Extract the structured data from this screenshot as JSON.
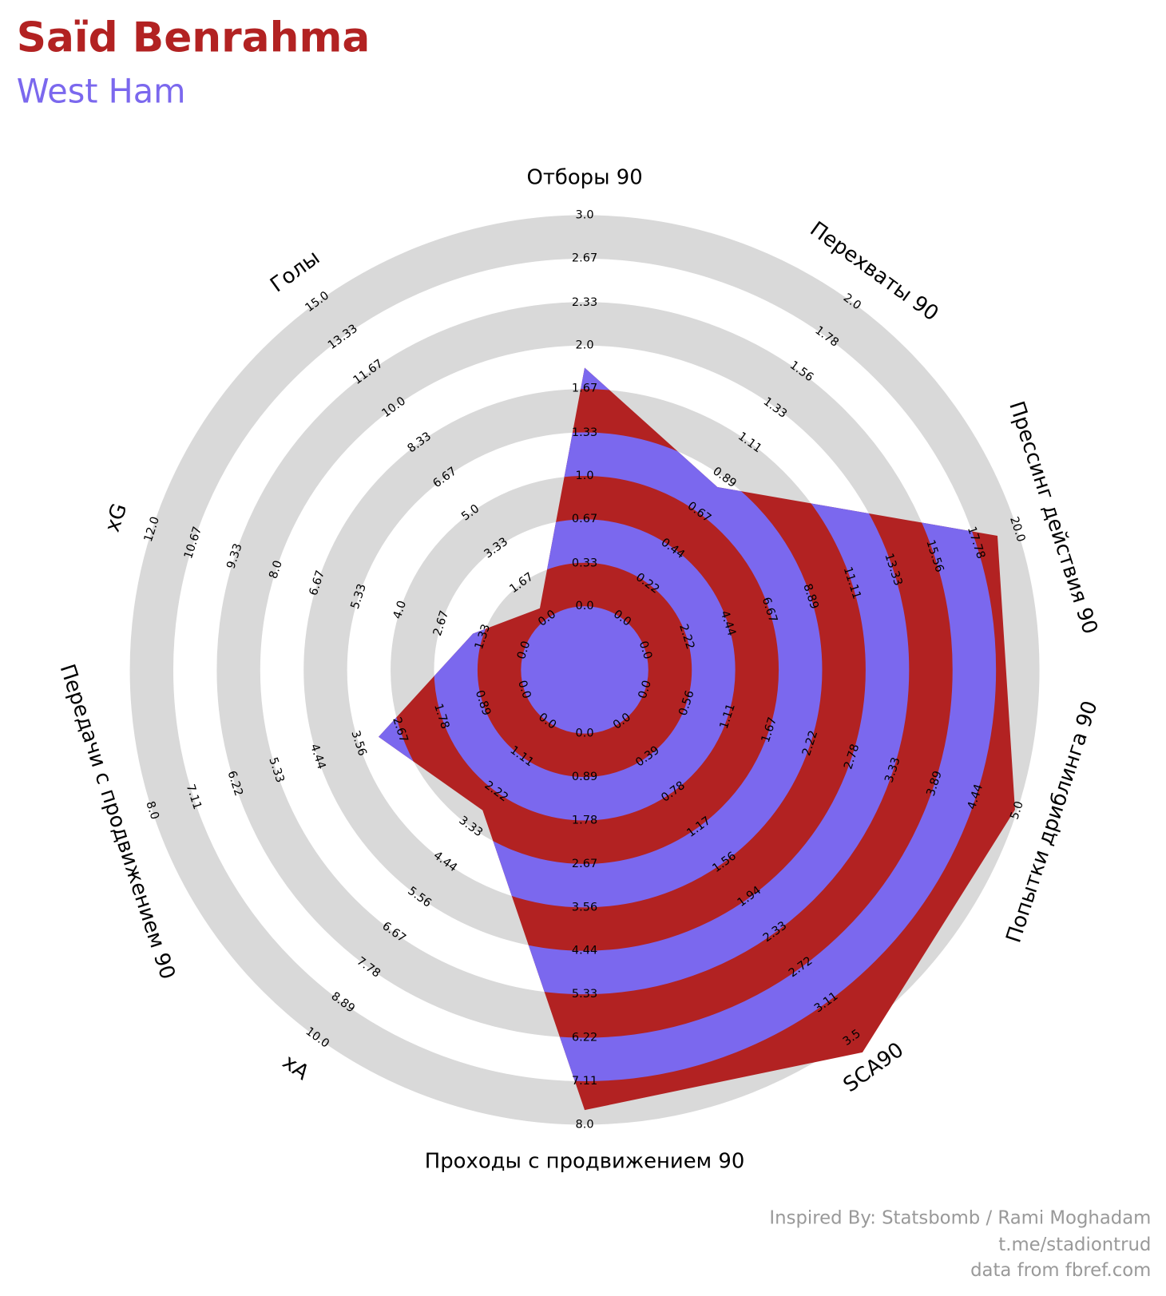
{
  "chart_data": {
    "type": "radar",
    "title": "Saïd Benrahma",
    "subtitle": "West Ham",
    "footer": [
      "Inspired By: Statsbomb / Rami Moghadam",
      "t.me/stadiontrud",
      "data from fbref.com"
    ],
    "fill_colors": [
      "#b22222",
      "#7b68ee"
    ],
    "ring_color": "#d9d9d9",
    "axes": [
      {
        "label": "Отборы 90",
        "rlim": [
          0,
          3
        ],
        "ticks": [
          {
            "value": 0,
            "label": "0.0"
          },
          0.33,
          0.67,
          {
            "value": 1,
            "label": "1.0"
          },
          1.33,
          1.67,
          {
            "value": 2,
            "label": "2.0"
          },
          2.33,
          2.67,
          {
            "value": 3,
            "label": "3.0"
          }
        ]
      },
      {
        "label": "Перехваты 90",
        "rlim": [
          0,
          2
        ],
        "ticks": [
          {
            "value": 0,
            "label": "0.0"
          },
          0.22,
          0.44,
          0.67,
          0.89,
          1.11,
          1.33,
          1.56,
          1.78,
          {
            "value": 2,
            "label": "2.0"
          }
        ]
      },
      {
        "label": "Прессинг действия 90",
        "rlim": [
          0,
          20
        ],
        "ticks": [
          {
            "value": 0,
            "label": "0.0"
          },
          2.22,
          4.44,
          6.67,
          8.89,
          11.11,
          13.33,
          15.56,
          17.78,
          {
            "value": 20,
            "label": "20.0"
          }
        ]
      },
      {
        "label": "Попытки дриблинга 90",
        "rlim": [
          0,
          5
        ],
        "ticks": [
          {
            "value": 0,
            "label": "0.0"
          },
          0.56,
          1.11,
          1.67,
          2.22,
          2.78,
          3.33,
          3.89,
          4.44,
          {
            "value": 5,
            "label": "5.0"
          }
        ]
      },
      {
        "label": "SCA90",
        "rlim": [
          0,
          3.5
        ],
        "ticks": [
          {
            "value": 0,
            "label": "0.0"
          },
          0.39,
          0.78,
          1.17,
          1.56,
          1.94,
          2.33,
          2.72,
          3.11,
          3.5
        ]
      },
      {
        "label": "Проходы с продвижением 90",
        "rlim": [
          0,
          8
        ],
        "ticks": [
          {
            "value": 0,
            "label": "0.0"
          },
          0.89,
          1.78,
          2.67,
          3.56,
          4.44,
          5.33,
          6.22,
          7.11,
          {
            "value": 8,
            "label": "8.0"
          }
        ]
      },
      {
        "label": "xA",
        "rlim": [
          0,
          10
        ],
        "ticks": [
          {
            "value": 0,
            "label": "0.0"
          },
          1.11,
          2.22,
          3.33,
          4.44,
          5.56,
          6.67,
          7.78,
          8.89,
          {
            "value": 10,
            "label": "10.0"
          }
        ]
      },
      {
        "label": "Передачи с продвижением 90",
        "rlim": [
          0,
          8
        ],
        "ticks": [
          {
            "value": 0,
            "label": "0.0"
          },
          0.89,
          1.78,
          2.67,
          3.56,
          4.44,
          5.33,
          6.22,
          7.11,
          {
            "value": 8,
            "label": "8.0"
          }
        ]
      },
      {
        "label": "xG",
        "rlim": [
          0,
          12
        ],
        "ticks": [
          {
            "value": 0,
            "label": "0.0"
          },
          1.33,
          2.67,
          {
            "value": 4,
            "label": "4.0"
          },
          5.33,
          6.67,
          {
            "value": 8,
            "label": "8.0"
          },
          9.33,
          10.67,
          {
            "value": 12,
            "label": "12.0"
          }
        ]
      },
      {
        "label": "Голы",
        "rlim": [
          0,
          15
        ],
        "ticks": [
          {
            "value": 0,
            "label": "0.0"
          },
          1.67,
          3.33,
          {
            "value": 5,
            "label": "5.0"
          },
          6.67,
          8.33,
          {
            "value": 10,
            "label": "10.0"
          },
          11.67,
          13.33,
          {
            "value": 15,
            "label": "15.0"
          }
        ]
      }
    ],
    "values": [
      1.83,
      0.83,
      18.94,
      4.97,
      3.66,
      7.7,
      2.81,
      3.13,
      1.65,
      0.48
    ]
  }
}
